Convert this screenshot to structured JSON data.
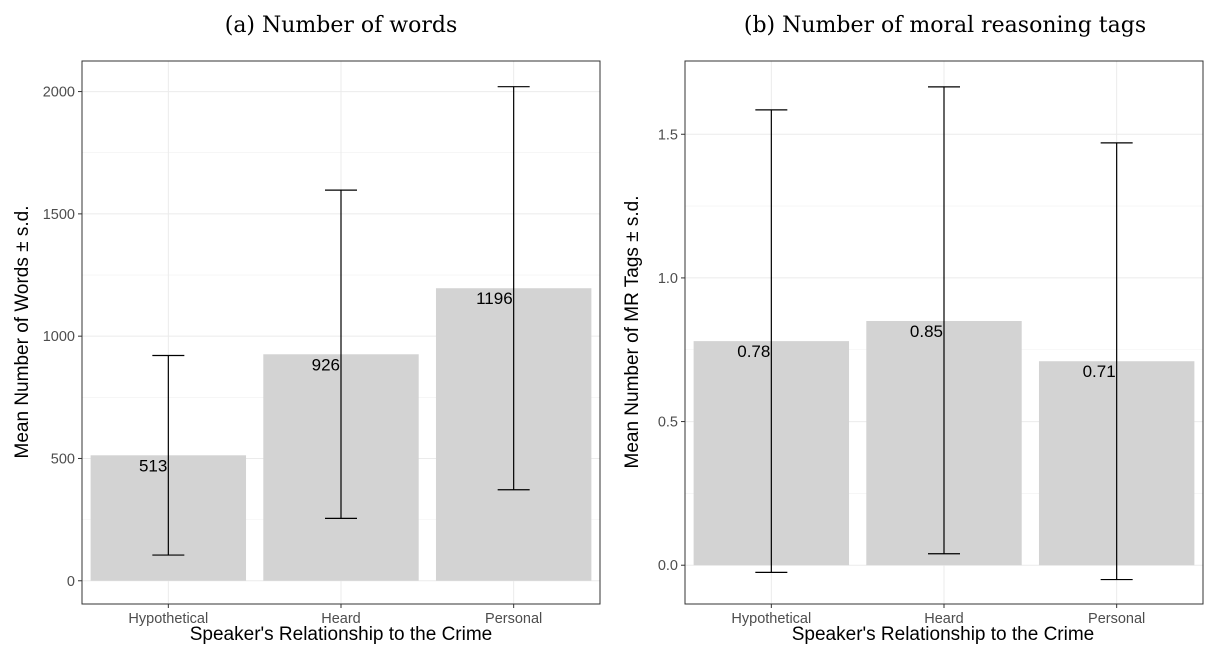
{
  "chart_data": [
    {
      "type": "bar",
      "title": "(a) Number of words",
      "xlabel": "Speaker's Relationship to the Crime",
      "ylabel": "Mean Number of Words ± s.d.",
      "categories": [
        "Hypothetical",
        "Heard",
        "Personal"
      ],
      "values": [
        513,
        926,
        1196
      ],
      "value_labels": [
        "513",
        "926",
        "1196"
      ],
      "error_low": [
        105,
        255,
        372
      ],
      "error_high": [
        921,
        1597,
        2020
      ],
      "ylim": [
        -95,
        2125
      ],
      "yticks": [
        0,
        500,
        1000,
        1500,
        2000
      ],
      "ytick_labels": [
        "0",
        "500",
        "1000",
        "1500",
        "2000"
      ],
      "grid": true,
      "bar_color": "#d3d3d3"
    },
    {
      "type": "bar",
      "title": "(b) Number of moral reasoning tags",
      "xlabel": "Speaker's Relationship to the Crime",
      "ylabel": "Mean Number of MR Tags ± s.d.",
      "categories": [
        "Hypothetical",
        "Heard",
        "Personal"
      ],
      "values": [
        0.78,
        0.85,
        0.71
      ],
      "value_labels": [
        "0.78",
        "0.85",
        "0.71"
      ],
      "error_low": [
        -0.025,
        0.04,
        -0.05
      ],
      "error_high": [
        1.585,
        1.665,
        1.47
      ],
      "ylim": [
        -0.135,
        1.755
      ],
      "yticks": [
        0,
        0.5,
        1,
        1.5
      ],
      "ytick_labels": [
        "0.0",
        "0.5",
        "1.0",
        "1.5"
      ],
      "grid": true,
      "bar_color": "#d3d3d3"
    }
  ]
}
